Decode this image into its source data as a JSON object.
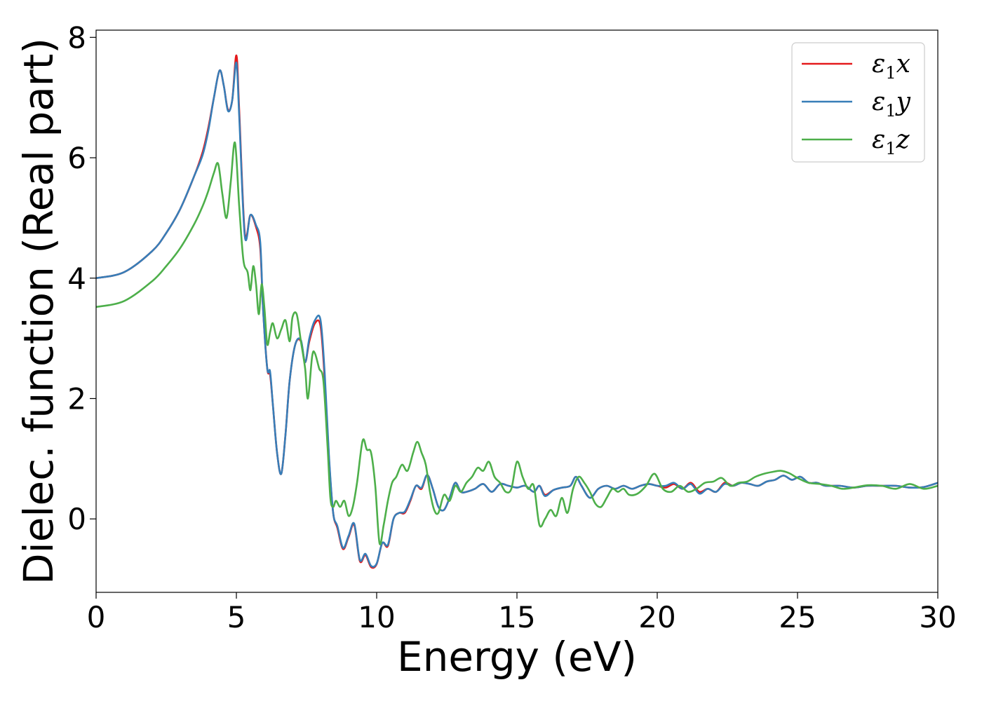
{
  "chart_data": {
    "type": "line",
    "xlabel": "Energy (eV)",
    "ylabel": "Dielec. function (Real part)",
    "xlim": [
      0,
      30
    ],
    "ylim": [
      -1.22,
      8.12
    ],
    "xticks": [
      0,
      5,
      10,
      15,
      20,
      25,
      30
    ],
    "yticks": [
      0,
      2,
      4,
      6,
      8
    ],
    "grid": false,
    "legend_position": "top-right",
    "series": [
      {
        "name": "ε₁x",
        "legend_base": "ε",
        "legend_sub": "1",
        "legend_suffix": "x",
        "color": "#e41a1c",
        "x": [
          0,
          1,
          2,
          2.5,
          3,
          3.5,
          3.8,
          4,
          4.2,
          4.4,
          4.55,
          4.7,
          4.85,
          5.0,
          5.1,
          5.3,
          5.5,
          5.7,
          5.85,
          5.95,
          6.1,
          6.2,
          6.3,
          6.45,
          6.6,
          6.75,
          6.9,
          7.1,
          7.3,
          7.45,
          7.6,
          7.8,
          8.0,
          8.15,
          8.3,
          8.45,
          8.6,
          8.8,
          9.0,
          9.2,
          9.4,
          9.6,
          9.8,
          10.0,
          10.2,
          10.4,
          10.6,
          10.8,
          11.0,
          11.2,
          11.4,
          11.6,
          11.8,
          12.0,
          12.2,
          12.4,
          12.6,
          12.8,
          13.0,
          13.2,
          13.5,
          13.8,
          14.1,
          14.4,
          14.7,
          15.0,
          15.3,
          15.6,
          15.8,
          16.0,
          16.3,
          16.6,
          16.9,
          17.1,
          17.3,
          17.6,
          17.9,
          18.2,
          18.5,
          18.8,
          19.1,
          19.4,
          19.7,
          20.0,
          20.3,
          20.6,
          20.9,
          21.2,
          21.5,
          21.8,
          22.1,
          22.4,
          22.7,
          23.0,
          23.3,
          23.6,
          23.9,
          24.2,
          24.5,
          24.8,
          25.1,
          25.4,
          25.7,
          26.0,
          26.5,
          27.0,
          27.5,
          28.0,
          28.5,
          29.0,
          29.5,
          30.0
        ],
        "y": [
          4.0,
          4.1,
          4.45,
          4.75,
          5.15,
          5.7,
          6.1,
          6.5,
          7.0,
          7.45,
          7.2,
          6.8,
          6.95,
          7.7,
          6.8,
          4.75,
          5.05,
          4.85,
          4.5,
          3.5,
          2.5,
          2.4,
          1.9,
          1.1,
          0.75,
          1.4,
          2.3,
          2.9,
          2.95,
          2.6,
          2.95,
          3.25,
          3.2,
          2.3,
          1.0,
          0.1,
          -0.15,
          -0.5,
          -0.3,
          -0.1,
          -0.7,
          -0.6,
          -0.8,
          -0.75,
          -0.4,
          -0.45,
          0.0,
          0.1,
          0.1,
          0.3,
          0.55,
          0.5,
          0.73,
          0.5,
          0.2,
          0.15,
          0.35,
          0.6,
          0.45,
          0.45,
          0.5,
          0.58,
          0.45,
          0.58,
          0.55,
          0.52,
          0.55,
          0.45,
          0.55,
          0.4,
          0.48,
          0.52,
          0.55,
          0.7,
          0.55,
          0.35,
          0.5,
          0.55,
          0.5,
          0.55,
          0.5,
          0.55,
          0.58,
          0.55,
          0.52,
          0.58,
          0.5,
          0.6,
          0.45,
          0.5,
          0.45,
          0.6,
          0.55,
          0.6,
          0.58,
          0.55,
          0.62,
          0.65,
          0.72,
          0.65,
          0.7,
          0.6,
          0.6,
          0.55,
          0.55,
          0.52,
          0.55,
          0.55,
          0.55,
          0.52,
          0.53,
          0.6
        ]
      },
      {
        "name": "ε₁y",
        "legend_base": "ε",
        "legend_sub": "1",
        "legend_suffix": "y",
        "color": "#377eb8",
        "x": [
          0,
          1,
          2,
          2.5,
          3,
          3.5,
          3.8,
          4,
          4.2,
          4.4,
          4.55,
          4.7,
          4.85,
          5.0,
          5.1,
          5.3,
          5.5,
          5.7,
          5.85,
          5.95,
          6.1,
          6.2,
          6.3,
          6.45,
          6.6,
          6.75,
          6.9,
          7.1,
          7.3,
          7.45,
          7.6,
          7.8,
          8.0,
          8.15,
          8.3,
          8.45,
          8.6,
          8.8,
          9.0,
          9.2,
          9.4,
          9.6,
          9.8,
          10.0,
          10.2,
          10.4,
          10.6,
          10.8,
          11.0,
          11.2,
          11.4,
          11.6,
          11.8,
          12.0,
          12.2,
          12.4,
          12.6,
          12.8,
          13.0,
          13.2,
          13.5,
          13.8,
          14.1,
          14.4,
          14.7,
          15.0,
          15.3,
          15.6,
          15.8,
          16.0,
          16.3,
          16.6,
          16.9,
          17.1,
          17.3,
          17.6,
          17.9,
          18.2,
          18.5,
          18.8,
          19.1,
          19.4,
          19.7,
          20.0,
          20.3,
          20.6,
          20.9,
          21.2,
          21.5,
          21.8,
          22.1,
          22.4,
          22.7,
          23.0,
          23.3,
          23.6,
          23.9,
          24.2,
          24.5,
          24.8,
          25.1,
          25.4,
          25.7,
          26.0,
          26.5,
          27.0,
          27.5,
          28.0,
          28.5,
          29.0,
          29.5,
          30.0
        ],
        "y": [
          4.0,
          4.1,
          4.45,
          4.75,
          5.15,
          5.7,
          6.05,
          6.45,
          7.0,
          7.45,
          7.2,
          6.78,
          6.95,
          7.58,
          6.7,
          4.7,
          5.05,
          4.88,
          4.6,
          3.5,
          2.5,
          2.45,
          1.9,
          1.1,
          0.75,
          1.4,
          2.3,
          2.9,
          2.97,
          2.6,
          3.0,
          3.3,
          3.3,
          2.4,
          1.05,
          0.1,
          -0.12,
          -0.48,
          -0.28,
          -0.08,
          -0.68,
          -0.58,
          -0.78,
          -0.74,
          -0.4,
          -0.43,
          0.0,
          0.1,
          0.12,
          0.32,
          0.55,
          0.52,
          0.73,
          0.5,
          0.2,
          0.15,
          0.35,
          0.6,
          0.45,
          0.45,
          0.5,
          0.58,
          0.45,
          0.58,
          0.55,
          0.52,
          0.55,
          0.45,
          0.55,
          0.38,
          0.48,
          0.52,
          0.55,
          0.7,
          0.55,
          0.35,
          0.5,
          0.55,
          0.5,
          0.55,
          0.5,
          0.55,
          0.58,
          0.55,
          0.55,
          0.6,
          0.5,
          0.58,
          0.42,
          0.5,
          0.45,
          0.58,
          0.55,
          0.6,
          0.58,
          0.55,
          0.62,
          0.65,
          0.72,
          0.65,
          0.7,
          0.6,
          0.6,
          0.55,
          0.55,
          0.52,
          0.55,
          0.55,
          0.55,
          0.52,
          0.53,
          0.6
        ]
      },
      {
        "name": "ε₁z",
        "legend_base": "ε",
        "legend_sub": "1",
        "legend_suffix": "z",
        "color": "#4daf4a",
        "x": [
          0,
          1,
          2,
          2.5,
          3,
          3.5,
          3.8,
          4,
          4.2,
          4.35,
          4.5,
          4.65,
          4.8,
          4.95,
          5.1,
          5.25,
          5.4,
          5.5,
          5.6,
          5.7,
          5.8,
          5.9,
          6.0,
          6.1,
          6.2,
          6.3,
          6.45,
          6.6,
          6.75,
          6.9,
          7.0,
          7.15,
          7.3,
          7.45,
          7.55,
          7.7,
          7.8,
          7.95,
          8.1,
          8.25,
          8.35,
          8.45,
          8.55,
          8.7,
          8.85,
          9.0,
          9.15,
          9.3,
          9.5,
          9.65,
          9.8,
          9.95,
          10.1,
          10.25,
          10.4,
          10.55,
          10.7,
          10.9,
          11.1,
          11.3,
          11.45,
          11.6,
          11.75,
          11.9,
          12.05,
          12.2,
          12.4,
          12.6,
          12.8,
          13.0,
          13.2,
          13.4,
          13.6,
          13.8,
          14.0,
          14.2,
          14.4,
          14.6,
          14.8,
          15.0,
          15.2,
          15.4,
          15.6,
          15.8,
          16.0,
          16.2,
          16.4,
          16.6,
          16.8,
          17.0,
          17.2,
          17.4,
          17.6,
          17.8,
          18.0,
          18.2,
          18.4,
          18.6,
          18.8,
          19.0,
          19.3,
          19.6,
          19.9,
          20.2,
          20.5,
          20.8,
          21.1,
          21.4,
          21.7,
          22.0,
          22.3,
          22.6,
          22.9,
          23.2,
          23.5,
          23.8,
          24.1,
          24.4,
          24.7,
          25.0,
          25.4,
          25.8,
          26.2,
          26.6,
          27.0,
          27.5,
          28.0,
          28.5,
          29.0,
          29.5,
          30.0
        ],
        "y": [
          3.52,
          3.62,
          3.95,
          4.2,
          4.5,
          4.9,
          5.2,
          5.45,
          5.75,
          5.9,
          5.4,
          5.0,
          5.6,
          6.25,
          5.2,
          4.3,
          4.1,
          3.8,
          4.2,
          3.9,
          3.4,
          3.9,
          3.5,
          2.9,
          3.1,
          3.25,
          3.0,
          3.15,
          3.3,
          2.95,
          3.35,
          3.4,
          2.95,
          2.5,
          2.0,
          2.7,
          2.75,
          2.5,
          2.3,
          1.2,
          0.35,
          0.2,
          0.3,
          0.2,
          0.3,
          0.05,
          0.2,
          0.6,
          1.3,
          1.15,
          1.1,
          0.55,
          -0.4,
          -0.1,
          0.3,
          0.6,
          0.7,
          0.9,
          0.8,
          1.1,
          1.28,
          1.1,
          0.9,
          0.45,
          0.15,
          0.1,
          0.4,
          0.3,
          0.55,
          0.45,
          0.6,
          0.7,
          0.85,
          0.8,
          0.95,
          0.7,
          0.6,
          0.45,
          0.5,
          0.95,
          0.7,
          0.5,
          0.55,
          -0.1,
          0.0,
          0.15,
          0.05,
          0.35,
          0.1,
          0.5,
          0.7,
          0.6,
          0.45,
          0.25,
          0.2,
          0.35,
          0.5,
          0.45,
          0.5,
          0.4,
          0.42,
          0.55,
          0.75,
          0.5,
          0.45,
          0.55,
          0.45,
          0.5,
          0.6,
          0.62,
          0.68,
          0.55,
          0.6,
          0.62,
          0.7,
          0.75,
          0.78,
          0.8,
          0.76,
          0.68,
          0.6,
          0.58,
          0.55,
          0.5,
          0.52,
          0.56,
          0.55,
          0.5,
          0.58,
          0.5,
          0.55
        ]
      }
    ]
  }
}
